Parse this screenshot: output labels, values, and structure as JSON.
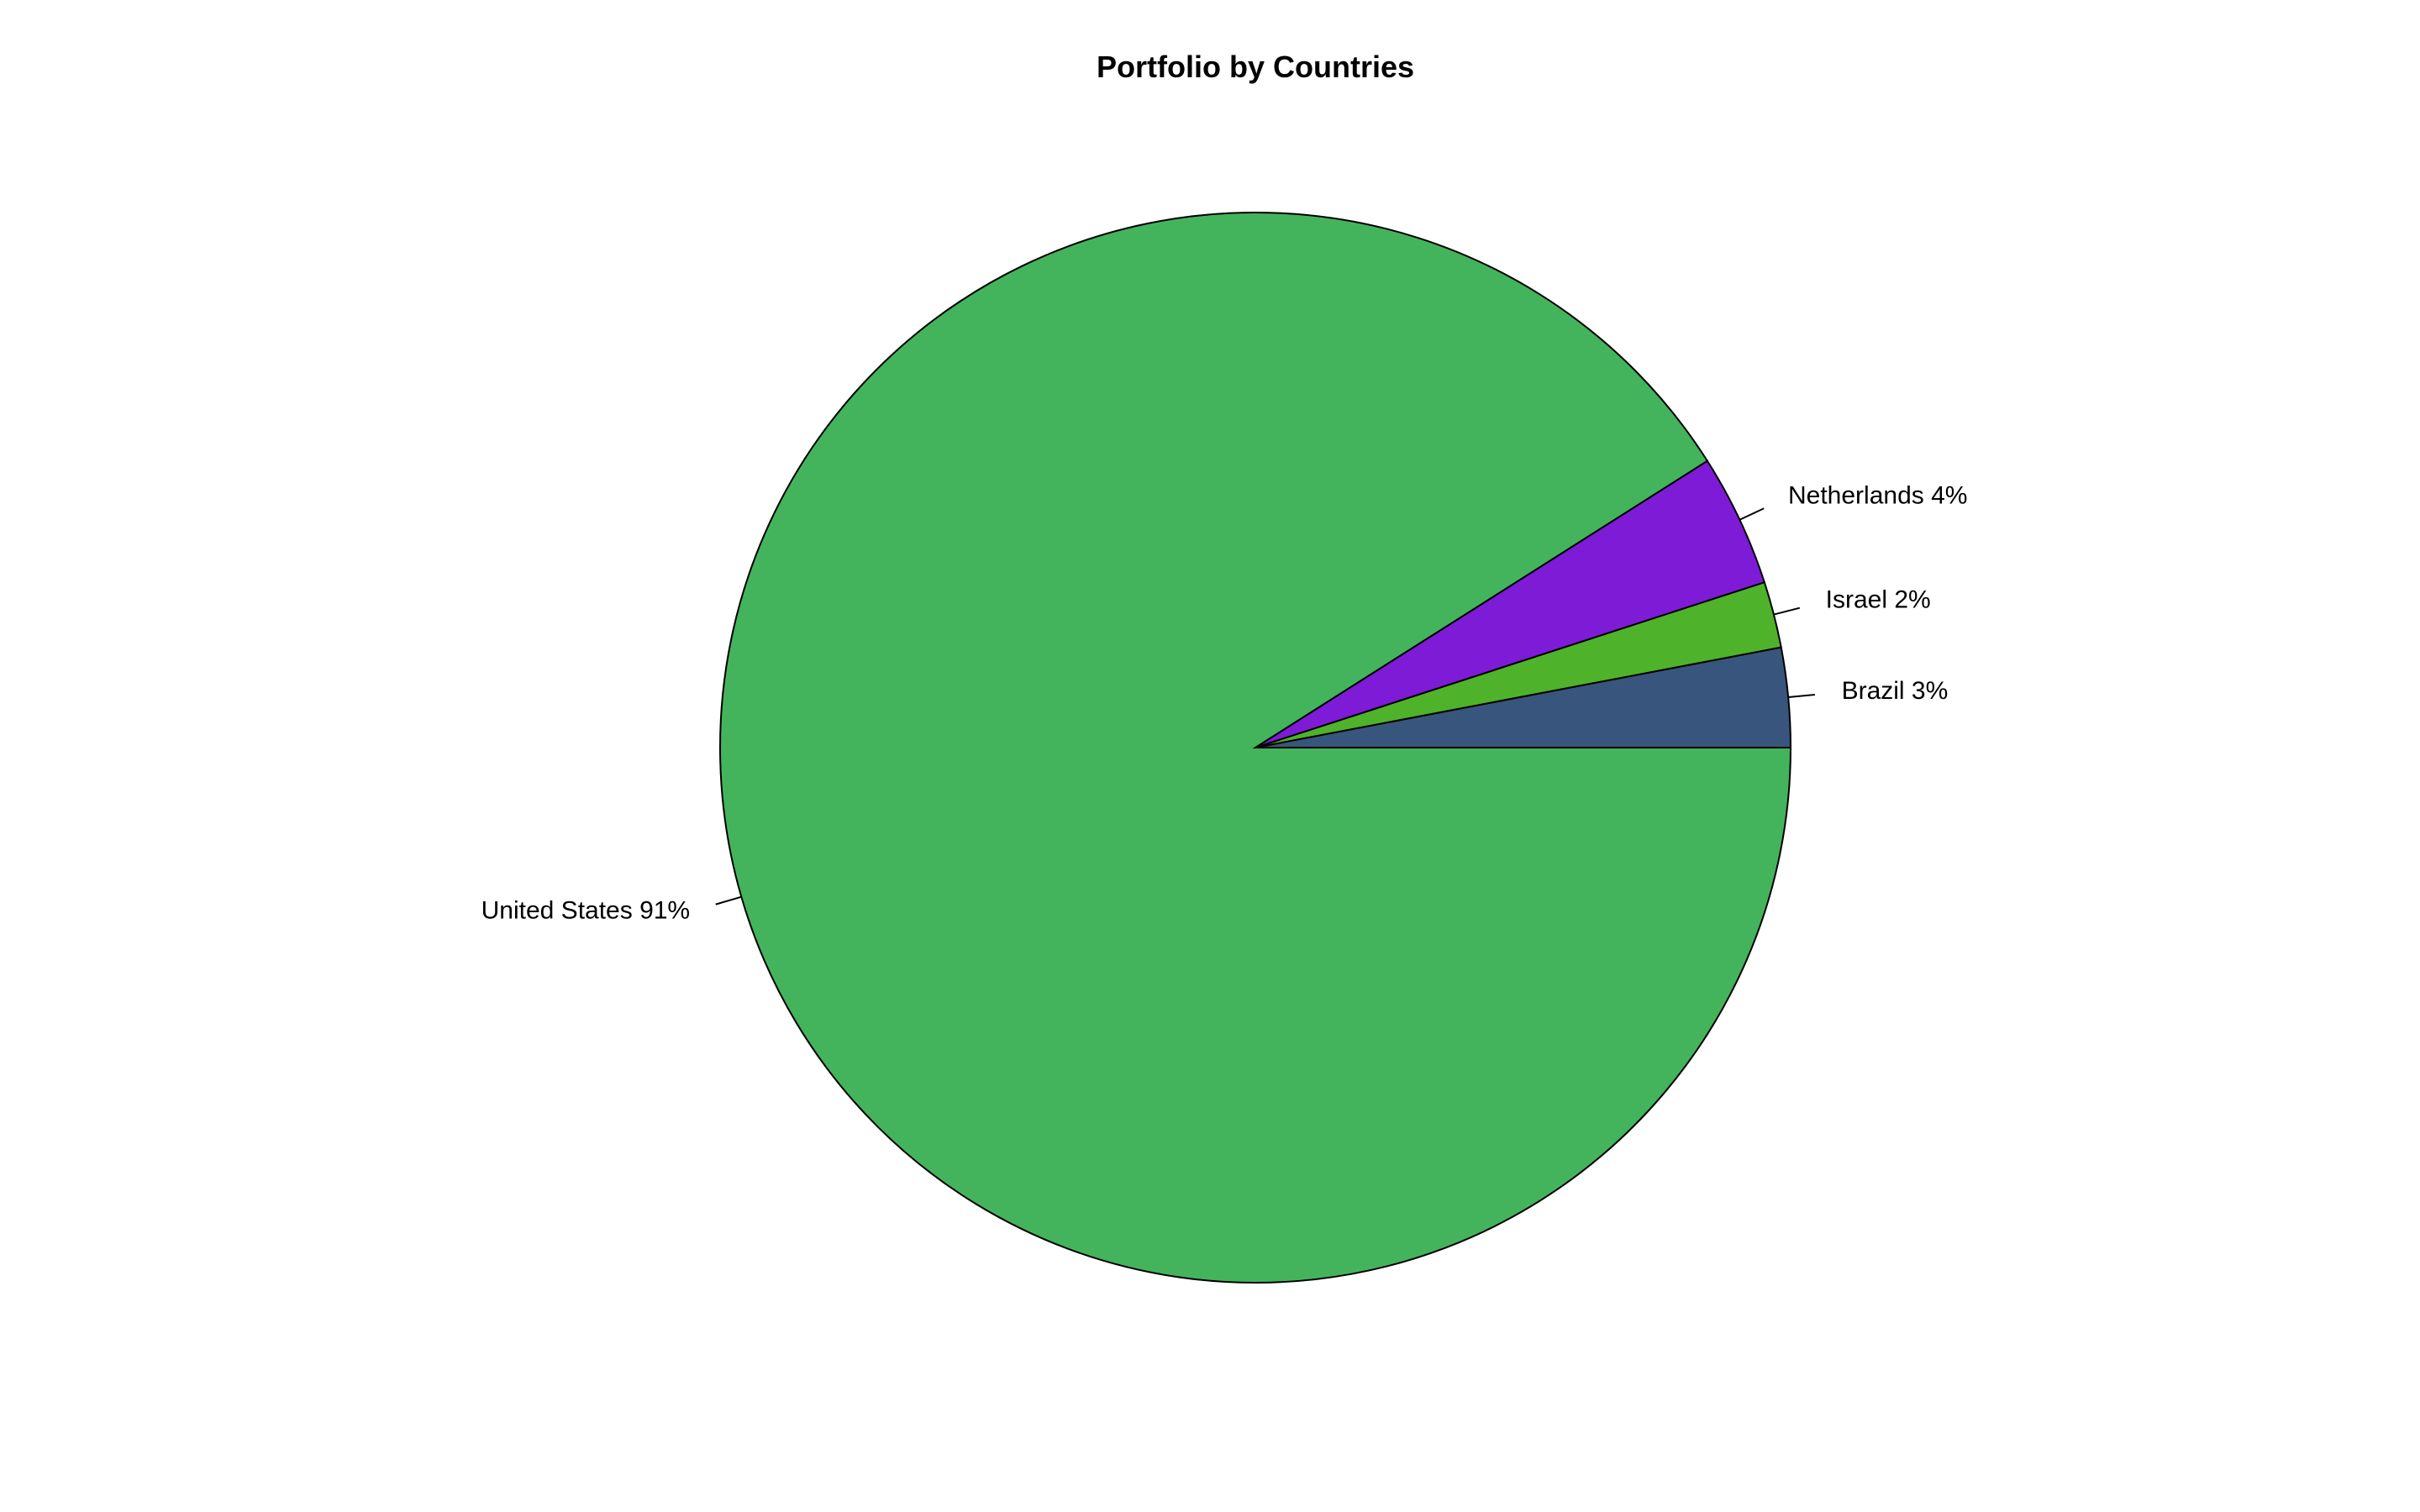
{
  "chart_data": {
    "type": "pie",
    "title": "Portfolio by Countries",
    "start_angle_deg": 0,
    "direction": "counterclockwise",
    "slices": [
      {
        "label": "Brazil",
        "value": 3,
        "display": "Brazil 3%",
        "color": "#38557D"
      },
      {
        "label": "Israel",
        "value": 2,
        "display": "Israel 2%",
        "color": "#4FB22B"
      },
      {
        "label": "Netherlands",
        "value": 4,
        "display": "Netherlands 4%",
        "color": "#7E1BD7"
      },
      {
        "label": "United States",
        "value": 91,
        "display": "United States 91%",
        "color": "#44B45C"
      }
    ]
  }
}
